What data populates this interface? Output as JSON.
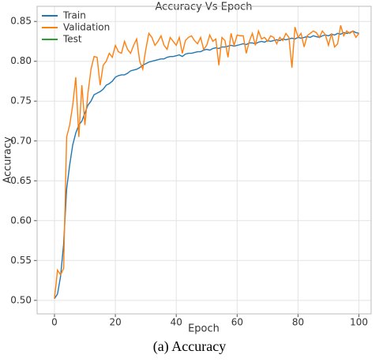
{
  "chart_data": {
    "type": "line",
    "title": "Accuracy Vs Epoch",
    "x_label": "Epoch",
    "y_label": "Accuracy",
    "caption": "(a) Accuracy",
    "x": [
      0,
      1,
      2,
      3,
      4,
      5,
      6,
      7,
      8,
      9,
      10,
      11,
      12,
      13,
      14,
      15,
      16,
      17,
      18,
      19,
      20,
      21,
      22,
      23,
      24,
      25,
      26,
      27,
      28,
      29,
      30,
      31,
      32,
      33,
      34,
      35,
      36,
      37,
      38,
      39,
      40,
      41,
      42,
      43,
      44,
      45,
      46,
      47,
      48,
      49,
      50,
      51,
      52,
      53,
      54,
      55,
      56,
      57,
      58,
      59,
      60,
      61,
      62,
      63,
      64,
      65,
      66,
      67,
      68,
      69,
      70,
      71,
      72,
      73,
      74,
      75,
      76,
      77,
      78,
      79,
      80,
      81,
      82,
      83,
      84,
      85,
      86,
      87,
      88,
      89,
      90,
      91,
      92,
      93,
      94,
      95,
      96,
      97,
      98,
      99,
      100
    ],
    "series": [
      {
        "name": "Train",
        "color": "#1f77b4",
        "values": [
          0.502,
          0.508,
          0.53,
          0.57,
          0.64,
          0.67,
          0.695,
          0.71,
          0.72,
          0.725,
          0.735,
          0.745,
          0.75,
          0.758,
          0.76,
          0.762,
          0.765,
          0.77,
          0.772,
          0.775,
          0.78,
          0.782,
          0.783,
          0.783,
          0.785,
          0.788,
          0.789,
          0.79,
          0.792,
          0.795,
          0.797,
          0.799,
          0.8,
          0.801,
          0.802,
          0.803,
          0.803,
          0.805,
          0.806,
          0.806,
          0.807,
          0.808,
          0.806,
          0.809,
          0.81,
          0.81,
          0.811,
          0.812,
          0.812,
          0.814,
          0.815,
          0.814,
          0.816,
          0.817,
          0.816,
          0.818,
          0.818,
          0.819,
          0.82,
          0.819,
          0.82,
          0.821,
          0.822,
          0.821,
          0.823,
          0.823,
          0.822,
          0.824,
          0.825,
          0.824,
          0.826,
          0.825,
          0.826,
          0.827,
          0.826,
          0.828,
          0.827,
          0.828,
          0.829,
          0.828,
          0.83,
          0.829,
          0.83,
          0.831,
          0.83,
          0.832,
          0.831,
          0.83,
          0.832,
          0.833,
          0.832,
          0.834,
          0.833,
          0.835,
          0.834,
          0.836,
          0.835,
          0.836,
          0.838,
          0.836,
          0.835
        ]
      },
      {
        "name": "Validation",
        "color": "#ff7f0e",
        "values": [
          0.502,
          0.538,
          0.532,
          0.54,
          0.705,
          0.72,
          0.745,
          0.78,
          0.705,
          0.77,
          0.72,
          0.76,
          0.79,
          0.806,
          0.805,
          0.77,
          0.795,
          0.8,
          0.81,
          0.805,
          0.82,
          0.812,
          0.81,
          0.825,
          0.815,
          0.81,
          0.82,
          0.828,
          0.8,
          0.79,
          0.815,
          0.835,
          0.83,
          0.82,
          0.825,
          0.832,
          0.82,
          0.815,
          0.83,
          0.825,
          0.82,
          0.83,
          0.81,
          0.826,
          0.83,
          0.832,
          0.826,
          0.822,
          0.83,
          0.815,
          0.82,
          0.833,
          0.825,
          0.828,
          0.795,
          0.83,
          0.826,
          0.805,
          0.835,
          0.82,
          0.833,
          0.832,
          0.832,
          0.81,
          0.825,
          0.835,
          0.82,
          0.838,
          0.828,
          0.83,
          0.825,
          0.832,
          0.83,
          0.822,
          0.83,
          0.826,
          0.835,
          0.83,
          0.792,
          0.843,
          0.83,
          0.835,
          0.818,
          0.832,
          0.835,
          0.838,
          0.836,
          0.83,
          0.838,
          0.833,
          0.82,
          0.835,
          0.818,
          0.822,
          0.845,
          0.832,
          0.838,
          0.835,
          0.838,
          0.83,
          0.835
        ]
      },
      {
        "name": "Test",
        "color": "#2ca02c",
        "values": [
          null,
          null,
          null,
          null,
          null,
          null,
          null,
          null,
          null,
          null,
          null,
          null,
          null,
          null,
          null,
          null,
          null,
          null,
          null,
          null,
          null,
          null,
          null,
          null,
          null,
          null,
          null,
          null,
          null,
          null,
          null,
          null,
          null,
          null,
          null,
          null,
          null,
          null,
          null,
          null,
          null,
          null,
          null,
          null,
          null,
          null,
          null,
          null,
          null,
          null,
          null,
          null,
          null,
          null,
          null,
          null,
          null,
          null,
          null,
          null,
          null,
          null,
          null,
          null,
          null,
          null,
          null,
          null,
          null,
          null,
          null,
          null,
          null,
          null,
          null,
          null,
          null,
          null,
          null,
          null,
          null,
          null,
          null,
          null,
          null,
          null,
          null,
          null,
          null,
          null,
          null,
          null,
          null,
          null,
          null,
          null,
          null,
          null,
          null,
          null,
          null
        ]
      }
    ],
    "xlim": [
      -5.7,
      104
    ],
    "ylim": [
      0.483,
      0.869
    ],
    "xticks": [
      0,
      20,
      40,
      60,
      80,
      100
    ],
    "yticks": [
      {
        "value": 0.5,
        "label": "0.50"
      },
      0.55,
      {
        "value": 0.6,
        "label": "0.60"
      },
      0.65,
      {
        "value": 0.7,
        "label": "0.70"
      },
      0.75,
      {
        "value": 0.8,
        "label": "0.80"
      },
      0.85
    ],
    "grid": true,
    "legend": "upper left"
  }
}
